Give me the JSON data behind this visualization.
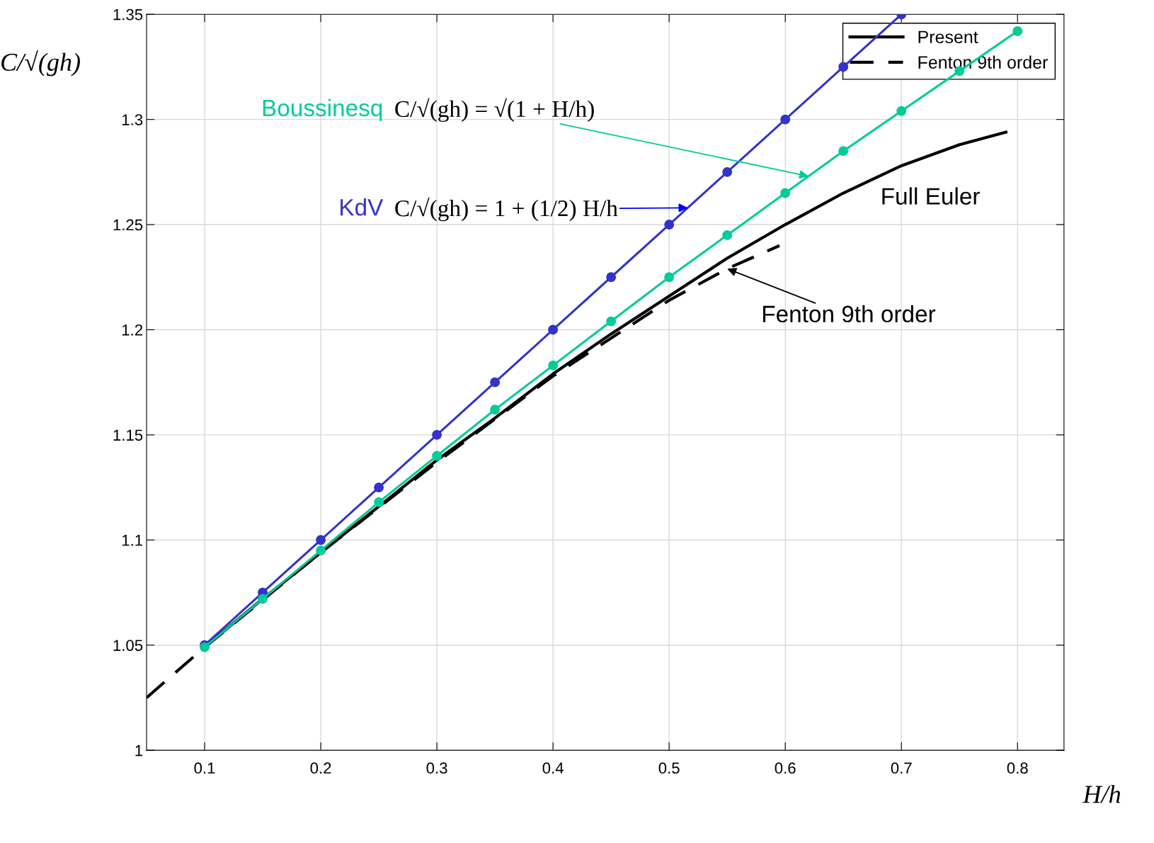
{
  "chart_data": {
    "type": "line",
    "xlabel": "H/h",
    "ylabel": "C/√(gh)",
    "xlim": [
      0.05,
      0.84
    ],
    "ylim": [
      1,
      1.35
    ],
    "xticks": [
      0.1,
      0.2,
      0.3,
      0.4,
      0.5,
      0.6,
      0.7,
      0.8
    ],
    "yticks": [
      1,
      1.05,
      1.1,
      1.15,
      1.2,
      1.25,
      1.3,
      1.35
    ],
    "grid": true,
    "legend": "top right",
    "series": [
      {
        "name": "Present",
        "color": "#000000",
        "line_style": "solid",
        "marker": "none",
        "x": [
          0.1,
          0.15,
          0.2,
          0.25,
          0.3,
          0.35,
          0.4,
          0.45,
          0.5,
          0.55,
          0.6,
          0.65,
          0.7,
          0.75,
          0.79
        ],
        "values": [
          1.049,
          1.072,
          1.094,
          1.116,
          1.138,
          1.158,
          1.179,
          1.198,
          1.216,
          1.234,
          1.25,
          1.265,
          1.278,
          1.288,
          1.294
        ]
      },
      {
        "name": "Fenton 9th order",
        "color": "#000000",
        "line_style": "dashed",
        "marker": "none",
        "x": [
          0.05,
          0.1,
          0.2,
          0.3,
          0.4,
          0.5,
          0.55,
          0.595
        ],
        "values": [
          1.025,
          1.049,
          1.094,
          1.137,
          1.178,
          1.214,
          1.229,
          1.24
        ]
      },
      {
        "name": "KdV",
        "color": "#3333cc",
        "line_style": "solid",
        "marker": "circle",
        "x": [
          0.1,
          0.15,
          0.2,
          0.25,
          0.3,
          0.35,
          0.4,
          0.45,
          0.5,
          0.55,
          0.6,
          0.65,
          0.7
        ],
        "values": [
          1.05,
          1.075,
          1.1,
          1.125,
          1.15,
          1.175,
          1.2,
          1.225,
          1.25,
          1.275,
          1.3,
          1.325,
          1.35
        ]
      },
      {
        "name": "Boussinesq",
        "color": "#00cc99",
        "line_style": "solid",
        "marker": "circle",
        "x": [
          0.1,
          0.15,
          0.2,
          0.25,
          0.3,
          0.35,
          0.4,
          0.45,
          0.5,
          0.55,
          0.6,
          0.65,
          0.7,
          0.75,
          0.8
        ],
        "values": [
          1.049,
          1.072,
          1.095,
          1.118,
          1.14,
          1.162,
          1.183,
          1.204,
          1.225,
          1.245,
          1.265,
          1.285,
          1.304,
          1.323,
          1.342
        ]
      }
    ],
    "annotations": [
      {
        "text": "C/√(gh) = √(1 + H/h)",
        "x": 0.62,
        "y": 1.273
      },
      {
        "text": "C/√(gh) = 1 + (1/2) H/h",
        "x": 0.516,
        "y": 1.258
      },
      {
        "text": "Fenton 9th order",
        "x": 0.55,
        "y": 1.229
      },
      "Full Euler"
    ]
  }
}
